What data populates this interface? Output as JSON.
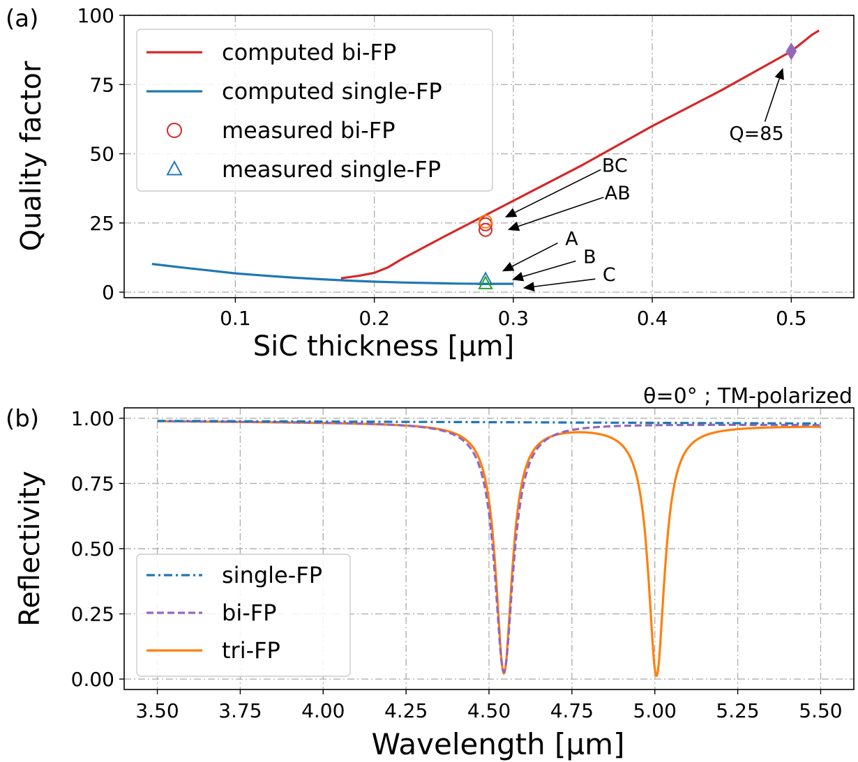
{
  "chart_data": [
    {
      "panel_label": "(a)",
      "type": "line",
      "xlabel": "SiC thickness [µm]",
      "ylabel": "Quality factor",
      "xlim": [
        0.02,
        0.545
      ],
      "ylim": [
        -2,
        100
      ],
      "xticks": [
        0.1,
        0.2,
        0.3,
        0.4,
        0.5
      ],
      "xtick_labels": [
        "0.1",
        "0.2",
        "0.3",
        "0.4",
        "0.5"
      ],
      "yticks": [
        0,
        25,
        50,
        75,
        100
      ],
      "ytick_labels": [
        "0",
        "25",
        "50",
        "75",
        "100"
      ],
      "grid": true,
      "legend_position": "upper-left",
      "series": [
        {
          "name": "computed bi-FP",
          "style": "solid",
          "color": "#d62728",
          "x": [
            0.176,
            0.19,
            0.2,
            0.21,
            0.22,
            0.25,
            0.3,
            0.35,
            0.4,
            0.45,
            0.5,
            0.515,
            0.52
          ],
          "y": [
            5,
            6,
            7,
            9,
            12,
            20,
            33,
            46,
            60,
            73,
            87,
            93,
            94.5
          ]
        },
        {
          "name": "computed single-FP",
          "style": "solid",
          "color": "#1f77b4",
          "x": [
            0.04,
            0.06,
            0.08,
            0.1,
            0.12,
            0.14,
            0.16,
            0.18,
            0.2,
            0.22,
            0.24,
            0.26,
            0.28,
            0.3
          ],
          "y": [
            10.2,
            9.0,
            7.9,
            6.8,
            6.0,
            5.3,
            4.7,
            4.2,
            3.8,
            3.5,
            3.3,
            3.1,
            3.0,
            3.0
          ]
        },
        {
          "name": "measured bi-FP",
          "marker": "circle",
          "color": "#d62728",
          "x": [
            0.28,
            0.28
          ],
          "y": [
            22.5,
            24.5
          ]
        },
        {
          "name": "measured single-FP",
          "marker": "triangle",
          "color": "#1f77b4",
          "x": [
            0.28
          ],
          "y": [
            4.5
          ]
        }
      ],
      "extra_markers": [
        {
          "marker": "circle",
          "color": "#ff7f0e",
          "x": 0.28,
          "y": 25.5
        },
        {
          "marker": "triangle",
          "color": "#2ca02c",
          "x": 0.28,
          "y": 3
        },
        {
          "marker": "diamond",
          "color": "#9467bd",
          "x": 0.5,
          "y": 87
        }
      ],
      "annotations": [
        {
          "text": "Q=85",
          "x": 0.475,
          "y": 55,
          "arrow_to": [
            0.494,
            81
          ]
        },
        {
          "text": "BC",
          "x": 0.373,
          "y": 43.5,
          "arrow_to": [
            0.294,
            27
          ]
        },
        {
          "text": "AB",
          "x": 0.375,
          "y": 33.5,
          "arrow_to": [
            0.296,
            22.5
          ]
        },
        {
          "text": "A",
          "x": 0.342,
          "y": 17,
          "arrow_to": [
            0.292,
            7.5
          ]
        },
        {
          "text": "B",
          "x": 0.355,
          "y": 10.5,
          "arrow_to": [
            0.299,
            4.5
          ]
        },
        {
          "text": "C",
          "x": 0.369,
          "y": 4,
          "arrow_to": [
            0.307,
            1.5
          ]
        }
      ]
    },
    {
      "panel_label": "(b)",
      "type": "line",
      "title": "θ=0° ; TM-polarized",
      "xlabel": "Wavelength [µm]",
      "ylabel": "Reflectivity",
      "xlim": [
        3.4,
        5.6
      ],
      "ylim": [
        -0.04,
        1.04
      ],
      "xticks": [
        3.5,
        3.75,
        4.0,
        4.25,
        4.5,
        4.75,
        5.0,
        5.25,
        5.5
      ],
      "xtick_labels": [
        "3.50",
        "3.75",
        "4.00",
        "4.25",
        "4.50",
        "4.75",
        "5.00",
        "5.25",
        "5.50"
      ],
      "yticks": [
        0,
        0.25,
        0.5,
        0.75,
        1.0
      ],
      "ytick_labels": [
        "0.00",
        "0.25",
        "0.50",
        "0.75",
        "1.00"
      ],
      "grid": true,
      "legend_position": "lower-left",
      "series": [
        {
          "name": "single-FP",
          "style": "dashdot",
          "color": "#1f77b4",
          "model": "flat",
          "baseline": [
            0.99,
            0.98
          ],
          "dips": []
        },
        {
          "name": "bi-FP",
          "style": "dashed",
          "color": "#9467bd",
          "model": "lorentzian",
          "baseline": [
            0.99,
            0.975
          ],
          "dips": [
            {
              "center": 4.545,
              "depth": 0.955,
              "halfwidth": 0.034
            }
          ]
        },
        {
          "name": "tri-FP",
          "style": "solid",
          "color": "#ff7f0e",
          "model": "lorentzian",
          "baseline": [
            0.99,
            0.972
          ],
          "dips": [
            {
              "center": 4.545,
              "depth": 0.955,
              "halfwidth": 0.03
            },
            {
              "center": 5.005,
              "depth": 0.96,
              "halfwidth": 0.03
            }
          ]
        }
      ]
    }
  ]
}
